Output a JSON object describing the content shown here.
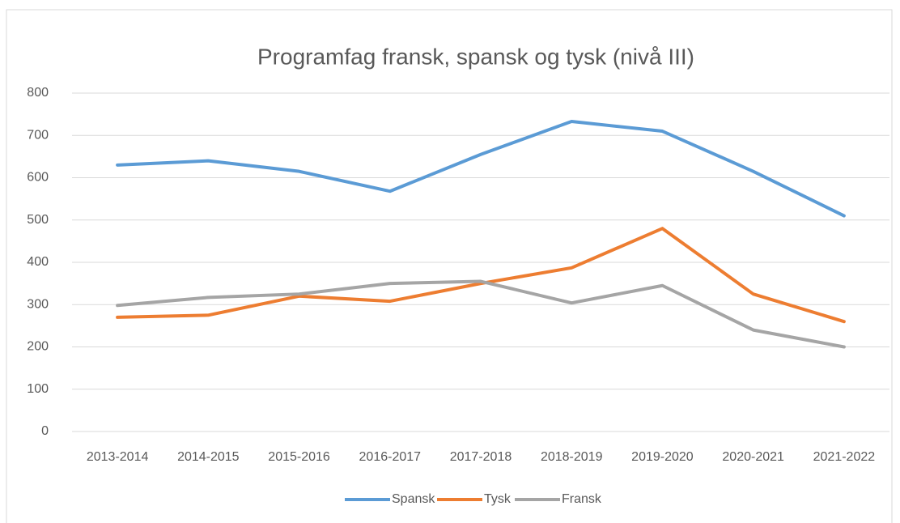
{
  "chart_data": {
    "type": "line",
    "title": "Programfag fransk, spansk og tysk (nivå III)",
    "categories": [
      "2013-2014",
      "2014-2015",
      "2015-2016",
      "2016-2017",
      "2017-2018",
      "2018-2019",
      "2019-2020",
      "2020-2021",
      "2021-2022"
    ],
    "series": [
      {
        "name": "Spansk",
        "color": "#5b9bd5",
        "values": [
          630,
          640,
          615,
          568,
          655,
          733,
          710,
          615,
          510
        ]
      },
      {
        "name": "Tysk",
        "color": "#ed7d31",
        "values": [
          270,
          275,
          320,
          308,
          350,
          387,
          480,
          325,
          260
        ]
      },
      {
        "name": "Fransk",
        "color": "#a5a5a5",
        "values": [
          298,
          317,
          325,
          350,
          355,
          304,
          345,
          240,
          200
        ]
      }
    ],
    "ylim": [
      0,
      800
    ],
    "yticks": [
      0,
      100,
      200,
      300,
      400,
      500,
      600,
      700,
      800
    ],
    "grid": true,
    "legend": "bottom"
  }
}
